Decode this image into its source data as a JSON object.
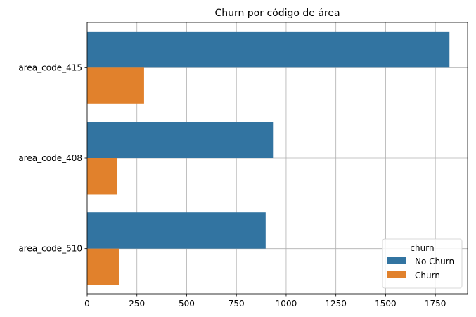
{
  "chart_data": {
    "type": "bar",
    "orientation": "horizontal",
    "title": "Churn por código de área",
    "xlabel": "",
    "ylabel": "",
    "categories": [
      "area_code_415",
      "area_code_408",
      "area_code_510"
    ],
    "series": [
      {
        "name": "No Churn",
        "color": "#3274a1",
        "values": [
          1821,
          934,
          897
        ]
      },
      {
        "name": "Churn",
        "color": "#e1812c",
        "values": [
          286,
          152,
          159
        ]
      }
    ],
    "xlim": [
      0,
      1912
    ],
    "x_ticks": [
      0,
      250,
      500,
      750,
      1000,
      1250,
      1500,
      1750
    ],
    "grid": true,
    "legend": {
      "title": "churn",
      "placement": "bottom-right"
    }
  }
}
